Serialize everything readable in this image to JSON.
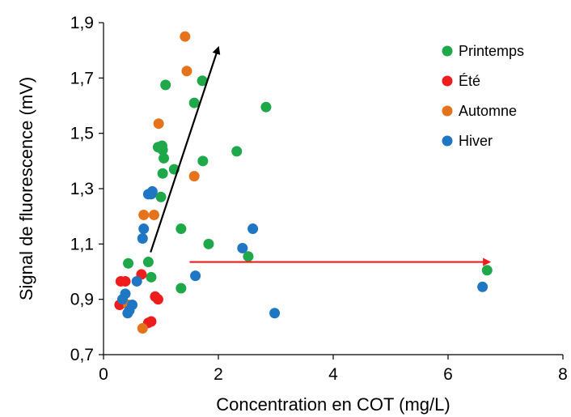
{
  "chart_data": {
    "type": "scatter",
    "title": "",
    "xlabel": "Concentration en COT (mg/L)",
    "ylabel": "Signal  de fluorescence (mV)",
    "xlim": [
      0,
      8
    ],
    "ylim": [
      0.7,
      1.9
    ],
    "x_ticks": [
      0,
      2,
      4,
      6,
      8
    ],
    "y_ticks": [
      0.7,
      0.9,
      1.1,
      1.3,
      1.5,
      1.7,
      1.9
    ],
    "x_tick_labels": [
      "0",
      "2",
      "4",
      "6",
      "8"
    ],
    "y_tick_labels": [
      "0,7",
      "0,9",
      "1,1",
      "1,3",
      "1,5",
      "1,7",
      "1,9"
    ],
    "grid": false,
    "legend_position": "top-right",
    "series": [
      {
        "name": "Printemps",
        "color": "#1ea84a",
        "points": [
          [
            0.43,
            1.03
          ],
          [
            0.78,
            1.035
          ],
          [
            0.83,
            0.98
          ],
          [
            1.35,
            0.94
          ],
          [
            1.35,
            1.155
          ],
          [
            1.83,
            1.1
          ],
          [
            2.52,
            1.055
          ],
          [
            6.68,
            1.005
          ],
          [
            0.95,
            1.45
          ],
          [
            1.02,
            1.455
          ],
          [
            1.03,
            1.44
          ],
          [
            1.05,
            1.41
          ],
          [
            1.03,
            1.355
          ],
          [
            1.23,
            1.37
          ],
          [
            1.73,
            1.4
          ],
          [
            1.0,
            1.27
          ],
          [
            1.58,
            1.61
          ],
          [
            1.08,
            1.675
          ],
          [
            1.72,
            1.69
          ],
          [
            2.32,
            1.435
          ],
          [
            2.83,
            1.595
          ]
        ]
      },
      {
        "name": "Été",
        "color": "#ee1c1c",
        "points": [
          [
            0.28,
            0.88
          ],
          [
            0.3,
            0.965
          ],
          [
            0.38,
            0.965
          ],
          [
            0.66,
            0.99
          ],
          [
            0.78,
            0.815
          ],
          [
            0.83,
            0.82
          ],
          [
            0.9,
            0.91
          ],
          [
            0.95,
            0.9
          ]
        ]
      },
      {
        "name": "Automne",
        "color": "#e5731c",
        "points": [
          [
            0.43,
            0.88
          ],
          [
            0.68,
            0.795
          ],
          [
            0.7,
            1.205
          ],
          [
            0.88,
            1.205
          ],
          [
            0.96,
            1.535
          ],
          [
            1.42,
            1.85
          ],
          [
            1.45,
            1.725
          ],
          [
            1.58,
            1.345
          ]
        ]
      },
      {
        "name": "Hiver",
        "color": "#1f77c4",
        "points": [
          [
            0.33,
            0.9
          ],
          [
            0.38,
            0.92
          ],
          [
            0.42,
            0.85
          ],
          [
            0.45,
            0.86
          ],
          [
            0.5,
            0.88
          ],
          [
            0.58,
            0.965
          ],
          [
            0.68,
            1.12
          ],
          [
            0.7,
            1.155
          ],
          [
            0.78,
            1.28
          ],
          [
            0.83,
            1.28
          ],
          [
            0.85,
            1.29
          ],
          [
            1.6,
            0.985
          ],
          [
            2.42,
            1.085
          ],
          [
            2.6,
            1.155
          ],
          [
            2.98,
            0.85
          ],
          [
            6.6,
            0.945
          ]
        ]
      }
    ],
    "annotations": [
      {
        "kind": "arrow",
        "color": "#000000",
        "from": [
          0.82,
          1.07
        ],
        "to": [
          2.0,
          1.81
        ]
      },
      {
        "kind": "arrow",
        "color": "#ee1c1c",
        "from": [
          1.5,
          1.035
        ],
        "to": [
          6.72,
          1.035
        ]
      }
    ]
  }
}
